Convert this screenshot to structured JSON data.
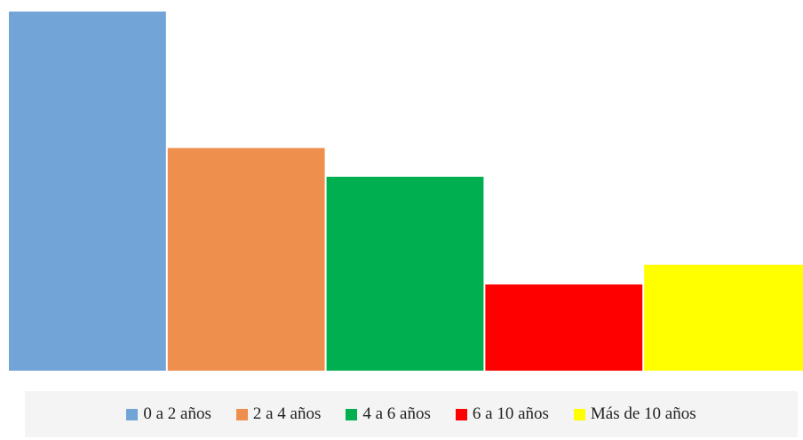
{
  "chart_data": {
    "type": "bar",
    "categories": [
      "0 a 2 años",
      "2 a 4 años",
      "4 a 6 años",
      "6 a 10 años",
      "Más de 10 años"
    ],
    "values": [
      100,
      62,
      54,
      24,
      29.5
    ],
    "colors": [
      "#72a4d7",
      "#ee8f4e",
      "#00b050",
      "#ff0000",
      "#ffff00"
    ],
    "title": "",
    "xlabel": "",
    "ylabel": "",
    "ylim": [
      0,
      100
    ],
    "grid": false,
    "legend_position": "bottom"
  },
  "legend": {
    "items": [
      {
        "label": "0 a 2 años",
        "color": "#72a4d7"
      },
      {
        "label": "2 a 4 años",
        "color": "#ee8f4e"
      },
      {
        "label": "4 a 6 años",
        "color": "#00b050"
      },
      {
        "label": "6 a 10 años",
        "color": "#ff0000"
      },
      {
        "label": "Más de 10 años",
        "color": "#ffff00"
      }
    ]
  }
}
